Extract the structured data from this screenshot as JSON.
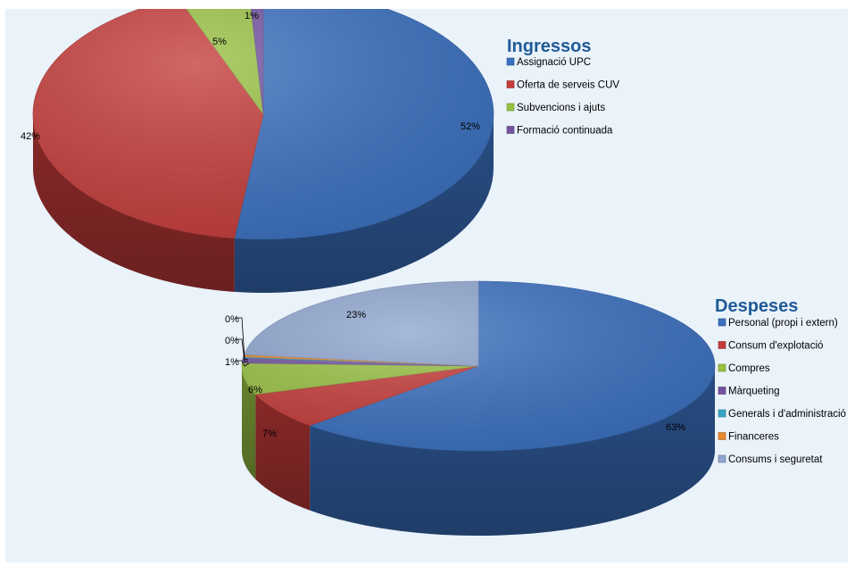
{
  "chart_data": [
    {
      "type": "pie",
      "title": "Ingressos",
      "legend_position": "right",
      "style": "3d",
      "categories": [
        "Assignació UPC",
        "Oferta de serveis CUV",
        "Subvencions i ajuts",
        "Formació continuada"
      ],
      "values": [
        52,
        42,
        5,
        1
      ],
      "labels": [
        "52%",
        "42%",
        "5%",
        "1%"
      ],
      "colors": [
        "#3a70c0",
        "#c53c3a",
        "#98c143",
        "#7352a0"
      ]
    },
    {
      "type": "pie",
      "title": "Despeses",
      "legend_position": "right",
      "style": "3d",
      "categories": [
        "Personal (propi i extern)",
        "Consum d'explotació",
        "Compres",
        "Màrqueting",
        "Generals i d'administració",
        "Financeres",
        "Consums i seguretat"
      ],
      "values": [
        63,
        7,
        6,
        1,
        0.2,
        0.4,
        23
      ],
      "labels": [
        "63%",
        "7%",
        "6%",
        "1%",
        "0%",
        "0%",
        "23%"
      ],
      "colors": [
        "#3a70c0",
        "#c53c3a",
        "#98c143",
        "#7352a0",
        "#38a5c4",
        "#e9892e",
        "#8ea5cf"
      ]
    }
  ]
}
